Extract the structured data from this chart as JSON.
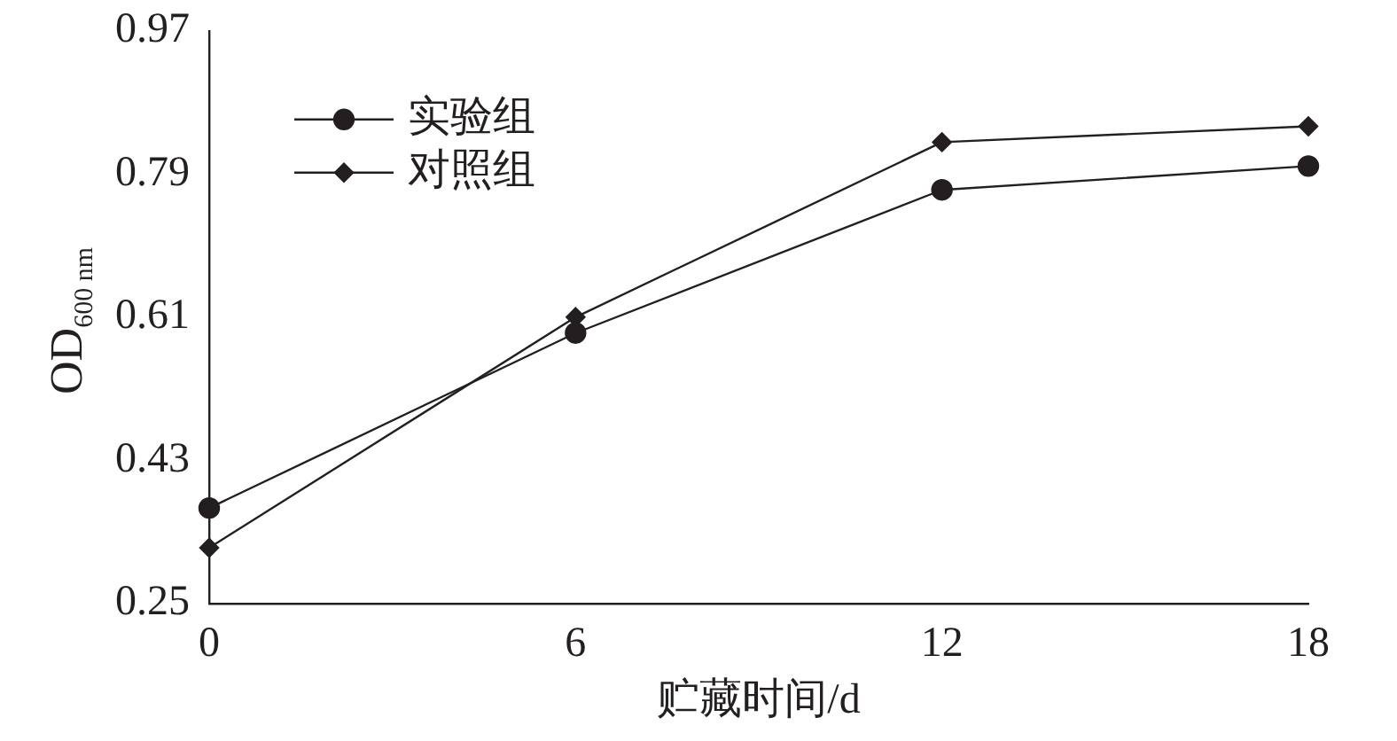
{
  "chart_data": {
    "type": "line",
    "xlabel": "贮藏时间/d",
    "ylabel": "OD$_{600 nm}$",
    "x": [
      0,
      6,
      12,
      18
    ],
    "series": [
      {
        "name": "实验组",
        "color": "#231f20",
        "marker": "circle",
        "values": [
          0.37,
          0.59,
          0.77,
          0.8
        ]
      },
      {
        "name": "对照组",
        "color": "#231f20",
        "marker": "diamond",
        "values": [
          0.32,
          0.61,
          0.83,
          0.85
        ]
      }
    ],
    "xlim": [
      0,
      18
    ],
    "xticks": [
      0,
      6,
      12,
      18
    ],
    "ylim": [
      0.25,
      0.97
    ],
    "yticks": [
      0.25,
      0.43,
      0.61,
      0.79,
      0.97
    ],
    "grid": false,
    "legend": "top left",
    "line_style": "solid"
  }
}
